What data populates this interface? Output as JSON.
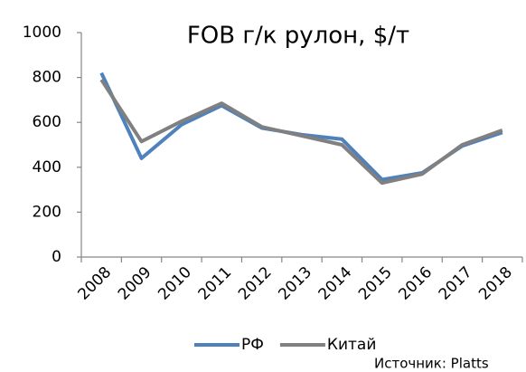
{
  "chart_data": {
    "type": "line",
    "title": "FOB г/к рулон, $/т",
    "categories": [
      "2008",
      "2009",
      "2010",
      "2011",
      "2012",
      "2013",
      "2014",
      "2015",
      "2016",
      "2017",
      "2018"
    ],
    "series": [
      {
        "name": "РФ",
        "color": "#4f81bd",
        "values": [
          820,
          440,
          590,
          675,
          575,
          545,
          525,
          345,
          375,
          495,
          555
        ]
      },
      {
        "name": "Китай",
        "color": "#808080",
        "values": [
          790,
          515,
          605,
          685,
          580,
          540,
          500,
          330,
          370,
          500,
          565
        ]
      }
    ],
    "ylim": [
      0,
      1000
    ],
    "yticks": [
      0,
      200,
      400,
      600,
      800,
      1000
    ],
    "grid": false,
    "legend": "bottom",
    "source": "Источник: Platts"
  }
}
